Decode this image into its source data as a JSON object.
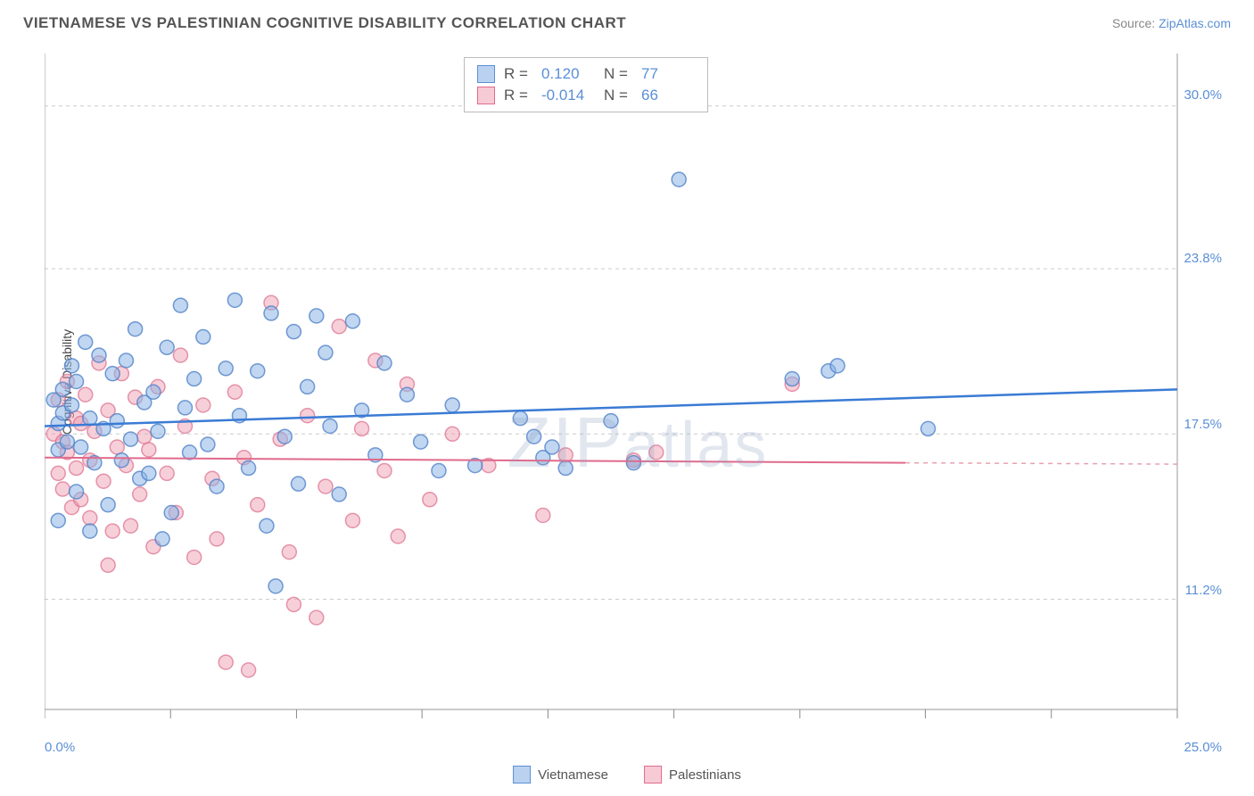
{
  "title": "VIETNAMESE VS PALESTINIAN COGNITIVE DISABILITY CORRELATION CHART",
  "source_prefix": "Source: ",
  "source_name": "ZipAtlas.com",
  "watermark": "ZIPatlas",
  "y_axis_label": "Cognitive Disability",
  "chart": {
    "type": "scatter",
    "background_color": "#ffffff",
    "grid_color": "#cccccc",
    "xlim": [
      0,
      25.0
    ],
    "ylim": [
      7.0,
      32.0
    ],
    "x_ticks": [
      0,
      2.78,
      5.56,
      8.33,
      11.11,
      13.89,
      16.67,
      19.44,
      22.22,
      25.0
    ],
    "x_tick_labels": {
      "0": "0.0%",
      "25": "25.0%"
    },
    "y_gridlines": [
      11.2,
      17.5,
      23.8,
      30.0
    ],
    "y_tick_labels": [
      "11.2%",
      "17.5%",
      "23.8%",
      "30.0%"
    ],
    "marker_radius": 8,
    "series": {
      "vietnamese": {
        "label": "Vietnamese",
        "color_fill": "#8cb4e6",
        "color_stroke": "#5082c8",
        "R": "0.120",
        "N": "77",
        "trend": {
          "x1": 0,
          "y1": 17.8,
          "x2": 25,
          "y2": 19.2,
          "color": "#3a7bd5",
          "width": 2.5
        },
        "points": [
          [
            0.2,
            18.8
          ],
          [
            0.3,
            17.9
          ],
          [
            0.3,
            16.9
          ],
          [
            0.4,
            18.3
          ],
          [
            0.4,
            19.2
          ],
          [
            0.5,
            17.2
          ],
          [
            0.6,
            18.6
          ],
          [
            0.6,
            20.1
          ],
          [
            0.7,
            15.3
          ],
          [
            0.7,
            19.5
          ],
          [
            0.8,
            17.0
          ],
          [
            0.9,
            21.0
          ],
          [
            1.0,
            18.1
          ],
          [
            1.1,
            16.4
          ],
          [
            1.2,
            20.5
          ],
          [
            1.3,
            17.7
          ],
          [
            1.4,
            14.8
          ],
          [
            1.5,
            19.8
          ],
          [
            1.6,
            18.0
          ],
          [
            1.7,
            16.5
          ],
          [
            1.8,
            20.3
          ],
          [
            1.9,
            17.3
          ],
          [
            2.0,
            21.5
          ],
          [
            2.1,
            15.8
          ],
          [
            2.2,
            18.7
          ],
          [
            2.3,
            16.0
          ],
          [
            2.4,
            19.1
          ],
          [
            2.5,
            17.6
          ],
          [
            2.7,
            20.8
          ],
          [
            2.8,
            14.5
          ],
          [
            3.0,
            22.4
          ],
          [
            3.1,
            18.5
          ],
          [
            3.2,
            16.8
          ],
          [
            3.3,
            19.6
          ],
          [
            3.5,
            21.2
          ],
          [
            3.6,
            17.1
          ],
          [
            3.8,
            15.5
          ],
          [
            4.0,
            20.0
          ],
          [
            4.2,
            22.6
          ],
          [
            4.3,
            18.2
          ],
          [
            4.5,
            16.2
          ],
          [
            4.7,
            19.9
          ],
          [
            4.9,
            14.0
          ],
          [
            5.0,
            22.1
          ],
          [
            5.1,
            11.7
          ],
          [
            5.3,
            17.4
          ],
          [
            5.5,
            21.4
          ],
          [
            5.6,
            15.6
          ],
          [
            5.8,
            19.3
          ],
          [
            6.0,
            22.0
          ],
          [
            6.2,
            20.6
          ],
          [
            6.3,
            17.8
          ],
          [
            6.5,
            15.2
          ],
          [
            6.8,
            21.8
          ],
          [
            7.0,
            18.4
          ],
          [
            7.3,
            16.7
          ],
          [
            7.5,
            20.2
          ],
          [
            8.0,
            19.0
          ],
          [
            8.3,
            17.2
          ],
          [
            8.7,
            16.1
          ],
          [
            9.0,
            18.6
          ],
          [
            9.5,
            16.3
          ],
          [
            10.5,
            18.1
          ],
          [
            10.8,
            17.4
          ],
          [
            11.0,
            16.6
          ],
          [
            11.2,
            17.0
          ],
          [
            11.5,
            16.2
          ],
          [
            12.5,
            18.0
          ],
          [
            13.0,
            16.4
          ],
          [
            14.0,
            27.2
          ],
          [
            16.5,
            19.6
          ],
          [
            17.3,
            19.9
          ],
          [
            17.5,
            20.1
          ],
          [
            19.5,
            17.7
          ],
          [
            0.3,
            14.2
          ],
          [
            1.0,
            13.8
          ],
          [
            2.6,
            13.5
          ]
        ]
      },
      "palestinians": {
        "label": "Palestinians",
        "color_fill": "#f0a0b4",
        "color_stroke": "#dc6e8c",
        "R": "-0.014",
        "N": "66",
        "trend": {
          "x1": 0,
          "y1": 16.6,
          "x2": 19,
          "y2": 16.4,
          "x3": 25,
          "y3": 16.35,
          "color": "#e06a8c",
          "width": 2
        },
        "points": [
          [
            0.2,
            17.5
          ],
          [
            0.3,
            16.0
          ],
          [
            0.3,
            18.8
          ],
          [
            0.4,
            17.2
          ],
          [
            0.4,
            15.4
          ],
          [
            0.5,
            19.5
          ],
          [
            0.5,
            16.8
          ],
          [
            0.6,
            14.7
          ],
          [
            0.7,
            18.1
          ],
          [
            0.7,
            16.2
          ],
          [
            0.8,
            17.9
          ],
          [
            0.8,
            15.0
          ],
          [
            0.9,
            19.0
          ],
          [
            1.0,
            16.5
          ],
          [
            1.0,
            14.3
          ],
          [
            1.1,
            17.6
          ],
          [
            1.2,
            20.2
          ],
          [
            1.3,
            15.7
          ],
          [
            1.4,
            18.4
          ],
          [
            1.5,
            13.8
          ],
          [
            1.6,
            17.0
          ],
          [
            1.7,
            19.8
          ],
          [
            1.8,
            16.3
          ],
          [
            1.9,
            14.0
          ],
          [
            2.0,
            18.9
          ],
          [
            2.1,
            15.2
          ],
          [
            2.2,
            17.4
          ],
          [
            2.4,
            13.2
          ],
          [
            2.5,
            19.3
          ],
          [
            2.7,
            16.0
          ],
          [
            2.9,
            14.5
          ],
          [
            3.0,
            20.5
          ],
          [
            3.1,
            17.8
          ],
          [
            3.3,
            12.8
          ],
          [
            3.5,
            18.6
          ],
          [
            3.7,
            15.8
          ],
          [
            3.8,
            13.5
          ],
          [
            4.0,
            8.8
          ],
          [
            4.2,
            19.1
          ],
          [
            4.4,
            16.6
          ],
          [
            4.5,
            8.5
          ],
          [
            4.7,
            14.8
          ],
          [
            5.0,
            22.5
          ],
          [
            5.2,
            17.3
          ],
          [
            5.4,
            13.0
          ],
          [
            5.5,
            11.0
          ],
          [
            5.8,
            18.2
          ],
          [
            6.0,
            10.5
          ],
          [
            6.2,
            15.5
          ],
          [
            6.5,
            21.6
          ],
          [
            6.8,
            14.2
          ],
          [
            7.0,
            17.7
          ],
          [
            7.3,
            20.3
          ],
          [
            7.5,
            16.1
          ],
          [
            7.8,
            13.6
          ],
          [
            8.0,
            19.4
          ],
          [
            8.5,
            15.0
          ],
          [
            9.0,
            17.5
          ],
          [
            9.8,
            16.3
          ],
          [
            11.0,
            14.4
          ],
          [
            11.5,
            16.7
          ],
          [
            13.0,
            16.5
          ],
          [
            13.5,
            16.8
          ],
          [
            16.5,
            19.4
          ],
          [
            2.3,
            16.9
          ],
          [
            1.4,
            12.5
          ]
        ]
      }
    }
  },
  "legend": {
    "stats": [
      {
        "swatch": "blue",
        "R_label": "R =",
        "R": "0.120",
        "N_label": "N =",
        "N": "77"
      },
      {
        "swatch": "pink",
        "R_label": "R =",
        "R": "-0.014",
        "N_label": "N =",
        "N": "66"
      }
    ],
    "bottom": [
      {
        "swatch": "blue",
        "label": "Vietnamese"
      },
      {
        "swatch": "pink",
        "label": "Palestinians"
      }
    ]
  }
}
